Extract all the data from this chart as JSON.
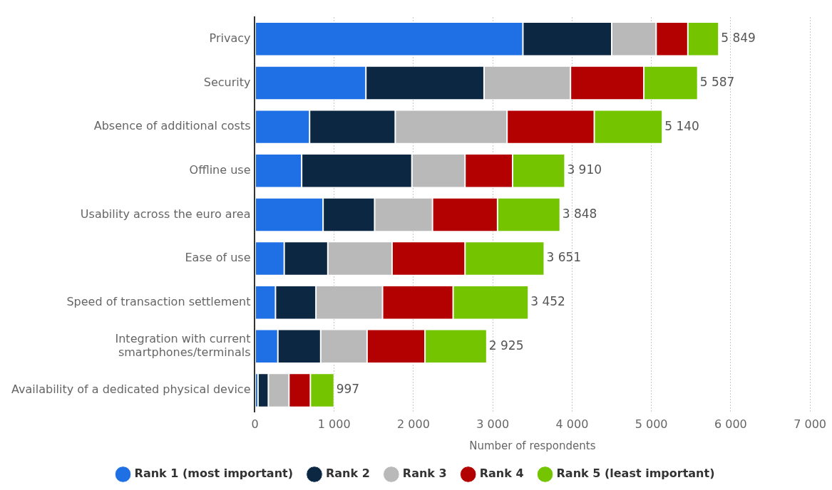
{
  "chart_data": {
    "type": "bar",
    "orientation": "horizontal",
    "stacked": true,
    "categories": [
      "Privacy",
      "Security",
      "Absence of additional costs",
      "Offline use",
      "Usability across the euro area",
      "Ease of use",
      "Speed of transaction settlement",
      "Integration with current smartphones/terminals",
      "Availability of a dedicated physical device"
    ],
    "series": [
      {
        "name": "Rank 1 (most important)",
        "color": "#1f6fe5",
        "values": [
          3380,
          1400,
          690,
          590,
          860,
          370,
          260,
          290,
          40
        ]
      },
      {
        "name": "Rank 2",
        "color": "#0b2742",
        "values": [
          1120,
          1490,
          1080,
          1390,
          650,
          550,
          510,
          540,
          130
        ]
      },
      {
        "name": "Rank 3",
        "color": "#b9b9b9",
        "values": [
          560,
          1090,
          1410,
          670,
          730,
          810,
          840,
          585,
          260
        ]
      },
      {
        "name": "Rank 4",
        "color": "#b30000",
        "values": [
          400,
          925,
          1100,
          600,
          820,
          920,
          890,
          730,
          270
        ]
      },
      {
        "name": "Rank 5 (least important)",
        "color": "#75c400",
        "values": [
          390,
          680,
          860,
          660,
          790,
          1000,
          950,
          780,
          300
        ]
      }
    ],
    "totals": [
      "5 849",
      "5 587",
      "5 140",
      "3 910",
      "3 848",
      "3 651",
      "3 452",
      "2 925",
      "997"
    ],
    "xlabel": "Number of respondents",
    "xlim": [
      0,
      7000
    ],
    "xticks": [
      0,
      {
        "value": 1000,
        "label": "1 000"
      },
      {
        "value": 2000,
        "label": "2 000"
      },
      {
        "value": 3000,
        "label": "3 000"
      },
      {
        "value": 4000,
        "label": "4 000"
      },
      {
        "value": 5000,
        "label": "5 000"
      },
      {
        "value": 6000,
        "label": "6 000"
      },
      {
        "value": 7000,
        "label": "7 000"
      }
    ],
    "grid": "x",
    "legend": "bottom"
  }
}
